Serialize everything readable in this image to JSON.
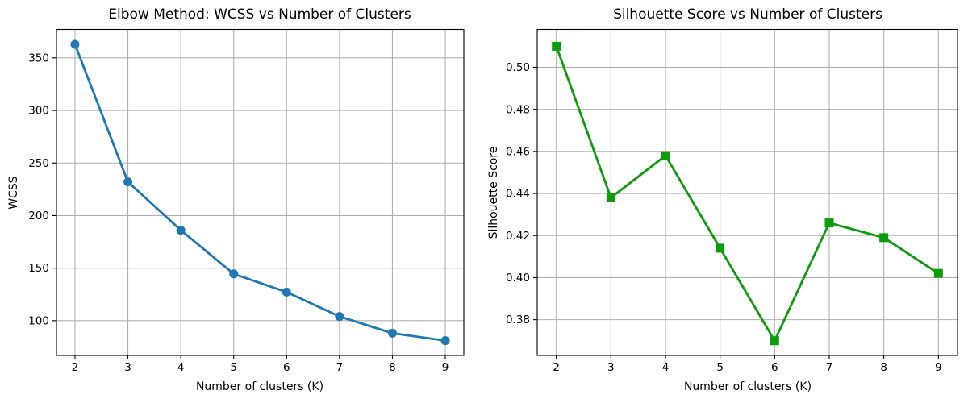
{
  "figure": {
    "background": "#ffffff"
  },
  "colors": {
    "grid": "#b0b0b0",
    "spine": "#000000",
    "tick_text": "#000000",
    "elbow_series": "#1f77b4",
    "silhouette_series": "#0c9c0c"
  },
  "chart_data": [
    {
      "type": "line",
      "title": "Elbow Method: WCSS vs Number of Clusters",
      "xlabel": "Number of clusters (K)",
      "ylabel": "WCSS",
      "x": [
        2,
        3,
        4,
        5,
        6,
        7,
        8,
        9
      ],
      "y": [
        362.9,
        232.1,
        186.1,
        144.5,
        127.2,
        104.0,
        88.1,
        81.0
      ],
      "series_name": "WCSS",
      "line_color": "#1f77b4",
      "marker": "circle",
      "xlim": [
        1.65,
        9.35
      ],
      "ylim": [
        66.9,
        377.1
      ],
      "xticks": [
        2,
        3,
        4,
        5,
        6,
        7,
        8,
        9
      ],
      "xtick_labels": [
        "2",
        "3",
        "4",
        "5",
        "6",
        "7",
        "8",
        "9"
      ],
      "yticks": [
        100,
        150,
        200,
        250,
        300,
        350
      ],
      "ytick_labels": [
        "100",
        "150",
        "200",
        "250",
        "300",
        "350"
      ],
      "grid": true,
      "legend": "none"
    },
    {
      "type": "line",
      "title": "Silhouette Score vs Number of Clusters",
      "xlabel": "Number of clusters (K)",
      "ylabel": "Silhouette Score",
      "x": [
        2,
        3,
        4,
        5,
        6,
        7,
        8,
        9
      ],
      "y": [
        0.51,
        0.438,
        0.458,
        0.414,
        0.37,
        0.426,
        0.419,
        0.402
      ],
      "series_name": "Silhouette Score",
      "line_color": "#0c9c0c",
      "marker": "square",
      "xlim": [
        1.65,
        9.35
      ],
      "ylim": [
        0.363,
        0.518
      ],
      "xticks": [
        2,
        3,
        4,
        5,
        6,
        7,
        8,
        9
      ],
      "xtick_labels": [
        "2",
        "3",
        "4",
        "5",
        "6",
        "7",
        "8",
        "9"
      ],
      "yticks": [
        0.38,
        0.4,
        0.42,
        0.44,
        0.46,
        0.48,
        0.5
      ],
      "ytick_labels": [
        "0.38",
        "0.40",
        "0.42",
        "0.44",
        "0.46",
        "0.48",
        "0.50"
      ],
      "grid": true,
      "legend": "none"
    }
  ]
}
